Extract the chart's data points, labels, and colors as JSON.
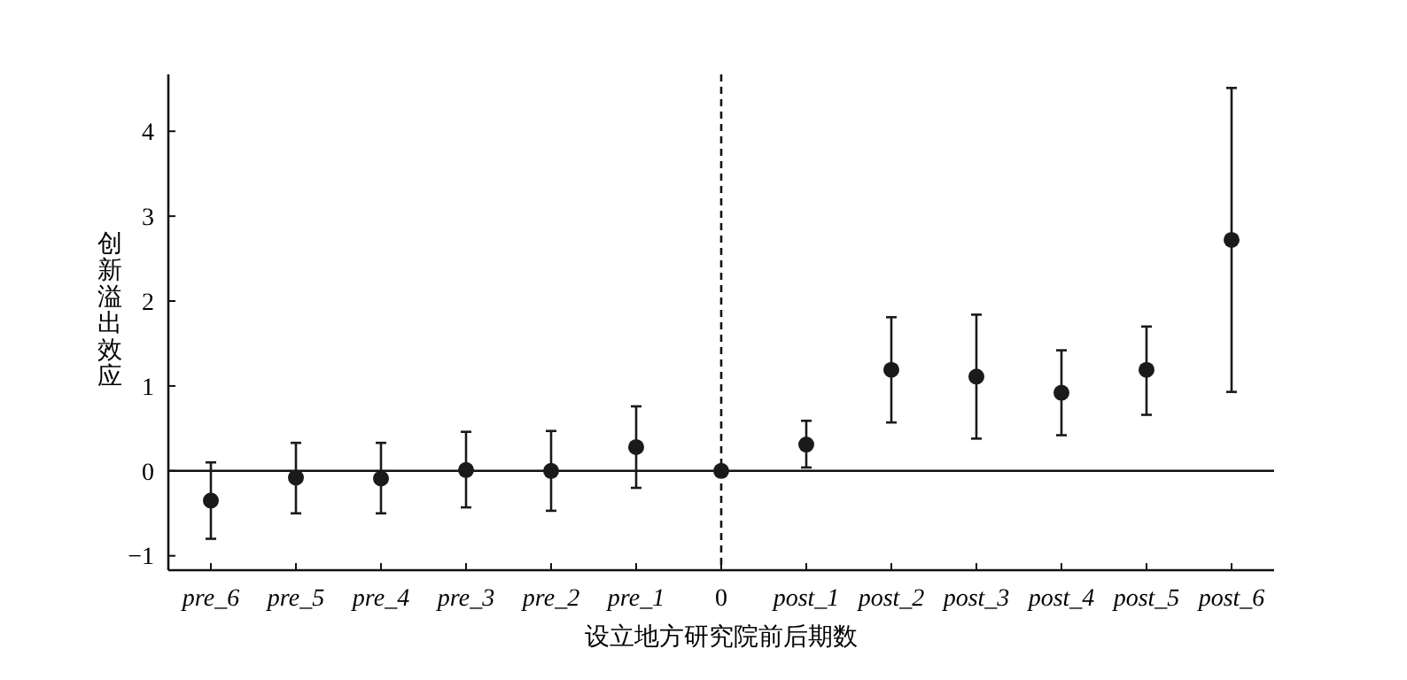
{
  "chart_data": {
    "type": "scatter",
    "xlabel": "设立地方研究院前后期数",
    "ylabel": "创新溢出效应",
    "categories": [
      "pre_6",
      "pre_5",
      "pre_4",
      "pre_3",
      "pre_2",
      "pre_1",
      "0",
      "post_1",
      "post_2",
      "post_3",
      "post_4",
      "post_5",
      "post_6"
    ],
    "series": [
      {
        "color": "#1a1a1a",
        "values": [
          -0.35,
          -0.08,
          -0.09,
          0.01,
          0.0,
          0.28,
          0,
          0.31,
          1.19,
          1.11,
          0.92,
          1.19,
          2.72
        ],
        "errors": [
          [
            -0.8,
            0.1
          ],
          [
            -0.5,
            0.33
          ],
          [
            -0.5,
            0.33
          ],
          [
            -0.43,
            0.46
          ],
          [
            -0.47,
            0.47
          ],
          [
            -0.2,
            0.76
          ],
          null,
          [
            0.04,
            0.59
          ],
          [
            0.57,
            1.81
          ],
          [
            0.38,
            1.84
          ],
          [
            0.42,
            1.42
          ],
          [
            0.66,
            1.7
          ],
          [
            0.93,
            4.51
          ]
        ]
      }
    ],
    "ylim": [
      -1.17,
      4.67
    ],
    "yticks": [
      {
        "value": -1,
        "label": "−1"
      },
      0,
      1,
      2,
      3,
      4
    ],
    "marker": "circle",
    "grid": false,
    "ref_lines": [
      {
        "axis": "y",
        "value": 0,
        "line_style": "solid"
      },
      {
        "axis": "x",
        "value": "0",
        "line_style": "dashed"
      }
    ]
  }
}
